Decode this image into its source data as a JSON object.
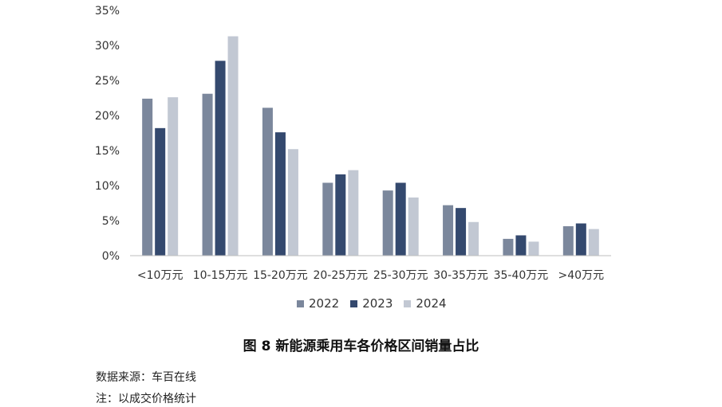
{
  "figure": {
    "caption": "图 8  新能源乘用车各价格区间销量占比",
    "source": "数据来源：车百在线",
    "note": "注：以成交价格统计"
  },
  "chart_data": {
    "type": "bar",
    "categories": [
      "<10万元",
      "10-15万元",
      "15-20万元",
      "20-25万元",
      "25-30万元",
      "30-35万元",
      "35-40万元",
      ">40万元"
    ],
    "series": [
      {
        "name": "2022",
        "color": "#7b879c",
        "values": [
          22.4,
          23.1,
          21.1,
          10.4,
          9.3,
          7.2,
          2.4,
          4.2
        ]
      },
      {
        "name": "2023",
        "color": "#34496e",
        "values": [
          18.2,
          27.8,
          17.6,
          11.6,
          10.4,
          6.8,
          2.9,
          4.6
        ]
      },
      {
        "name": "2024",
        "color": "#c2c8d3",
        "values": [
          22.6,
          31.3,
          15.2,
          12.2,
          8.3,
          4.8,
          2.0,
          3.8
        ]
      }
    ],
    "ylim": [
      0,
      35
    ],
    "yticks": [
      "0%",
      "5%",
      "10%",
      "15%",
      "20%",
      "25%",
      "30%",
      "35%"
    ],
    "ytick_values": [
      0,
      5,
      10,
      15,
      20,
      25,
      30,
      35
    ],
    "xlabel": "",
    "ylabel": "",
    "legend_position": "bottom-center",
    "grid": false
  }
}
